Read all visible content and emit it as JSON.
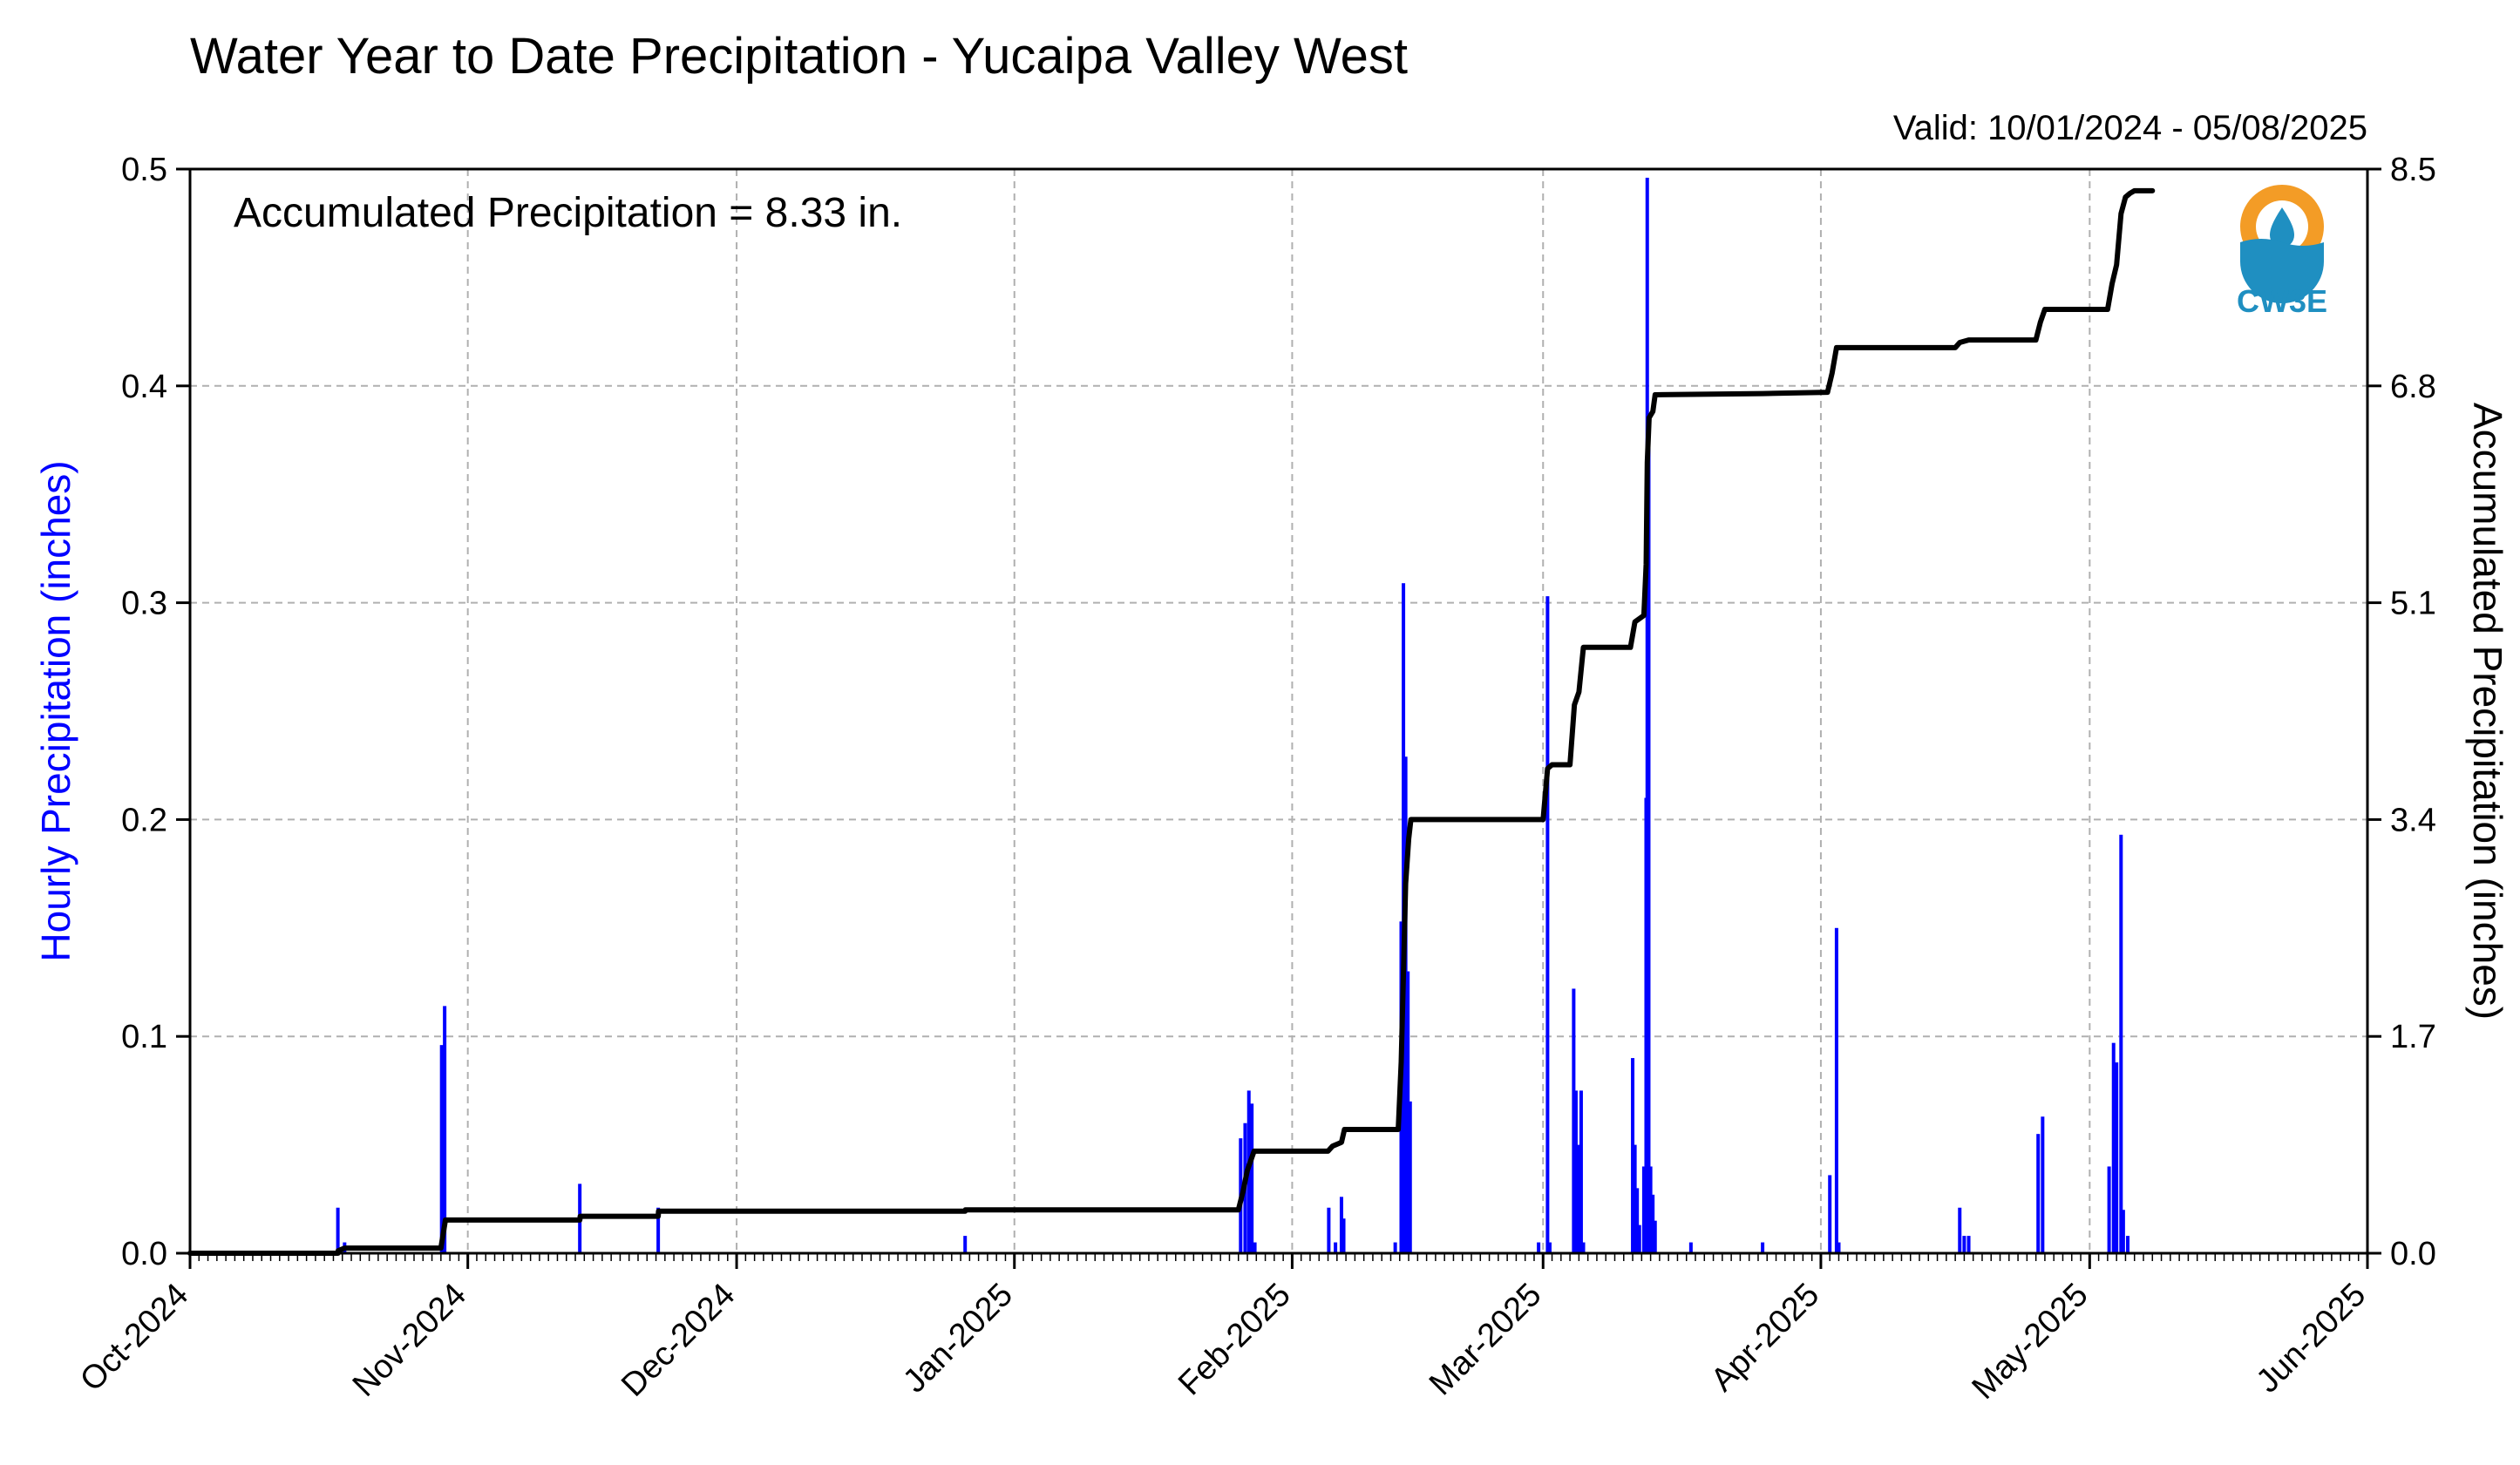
{
  "title": "Water Year to Date Precipitation - Yucaipa Valley West",
  "valid": "Valid: 10/01/2024 - 05/08/2025",
  "annotation": "Accumulated Precipitation = 8.33 in.",
  "logo_text": "CW3E",
  "colors": {
    "hourly": "#0000ff",
    "accum": "#000000",
    "grid": "#b0b0b0",
    "logo_orange": "#f39c26",
    "logo_blue": "#1f8fc1"
  },
  "chart_data": {
    "type": "bar",
    "x_axis": {
      "type": "date",
      "range": [
        "2024-10-01",
        "2025-06-01"
      ],
      "ticks": [
        {
          "date": "2024-10-01",
          "label": "Oct-2024"
        },
        {
          "date": "2024-11-01",
          "label": "Nov-2024"
        },
        {
          "date": "2024-12-01",
          "label": "Dec-2024"
        },
        {
          "date": "2025-01-01",
          "label": "Jan-2025"
        },
        {
          "date": "2025-02-01",
          "label": "Feb-2025"
        },
        {
          "date": "2025-03-01",
          "label": "Mar-2025"
        },
        {
          "date": "2025-04-01",
          "label": "Apr-2025"
        },
        {
          "date": "2025-05-01",
          "label": "May-2025"
        },
        {
          "date": "2025-06-01",
          "label": "Jun-2025"
        }
      ]
    },
    "y_left": {
      "label": "Hourly Precipitation (inches)",
      "range": [
        0,
        0.5
      ],
      "ticks": [
        0.0,
        0.1,
        0.2,
        0.3,
        0.4,
        0.5
      ],
      "tick_labels": [
        "0.0",
        "0.1",
        "0.2",
        "0.3",
        "0.4",
        "0.5"
      ]
    },
    "y_right": {
      "label": "Accumulated Precipitation (inches)",
      "range": [
        0,
        8.5
      ],
      "ticks": [
        0,
        1.7,
        3.4,
        5.1,
        6.8,
        8.5
      ],
      "tick_labels": [
        "0.0",
        "1.7",
        "3.4",
        "5.1",
        "6.8",
        "8.5"
      ]
    },
    "grid": true,
    "hourly_series": [
      {
        "x": "2024-10-17T12:00",
        "y": 0.021
      },
      {
        "x": "2024-10-18T06:00",
        "y": 0.005
      },
      {
        "x": "2024-10-29T02:00",
        "y": 0.096
      },
      {
        "x": "2024-10-29T10:00",
        "y": 0.114
      },
      {
        "x": "2024-11-13T12:00",
        "y": 0.032
      },
      {
        "x": "2024-11-22T06:00",
        "y": 0.021
      },
      {
        "x": "2024-12-26T12:00",
        "y": 0.008
      },
      {
        "x": "2025-01-26T06:00",
        "y": 0.053
      },
      {
        "x": "2025-01-26T18:00",
        "y": 0.06
      },
      {
        "x": "2025-01-27T04:00",
        "y": 0.075
      },
      {
        "x": "2025-01-27T12:00",
        "y": 0.069
      },
      {
        "x": "2025-01-27T20:00",
        "y": 0.005
      },
      {
        "x": "2025-02-05T02:00",
        "y": 0.021
      },
      {
        "x": "2025-02-05T20:00",
        "y": 0.005
      },
      {
        "x": "2025-02-06T12:00",
        "y": 0.026
      },
      {
        "x": "2025-02-06T18:00",
        "y": 0.016
      },
      {
        "x": "2025-02-12T12:00",
        "y": 0.005
      },
      {
        "x": "2025-02-13T04:00",
        "y": 0.153
      },
      {
        "x": "2025-02-13T10:00",
        "y": 0.309
      },
      {
        "x": "2025-02-13T16:00",
        "y": 0.229
      },
      {
        "x": "2025-02-13T22:00",
        "y": 0.13
      },
      {
        "x": "2025-02-14T04:00",
        "y": 0.07
      },
      {
        "x": "2025-02-28T12:00",
        "y": 0.005
      },
      {
        "x": "2025-03-01T12:00",
        "y": 0.303
      },
      {
        "x": "2025-03-01T18:00",
        "y": 0.005
      },
      {
        "x": "2025-03-04T10:00",
        "y": 0.122
      },
      {
        "x": "2025-03-04T16:00",
        "y": 0.075
      },
      {
        "x": "2025-03-05T00:00",
        "y": 0.05
      },
      {
        "x": "2025-03-05T06:00",
        "y": 0.075
      },
      {
        "x": "2025-03-05T12:00",
        "y": 0.005
      },
      {
        "x": "2025-03-11T00:00",
        "y": 0.09
      },
      {
        "x": "2025-03-11T06:00",
        "y": 0.05
      },
      {
        "x": "2025-03-11T12:00",
        "y": 0.03
      },
      {
        "x": "2025-03-11T18:00",
        "y": 0.013
      },
      {
        "x": "2025-03-12T06:00",
        "y": 0.04
      },
      {
        "x": "2025-03-12T12:00",
        "y": 0.21
      },
      {
        "x": "2025-03-12T15:00",
        "y": 0.496
      },
      {
        "x": "2025-03-12T19:00",
        "y": 0.38
      },
      {
        "x": "2025-03-13T00:00",
        "y": 0.04
      },
      {
        "x": "2025-03-13T06:00",
        "y": 0.027
      },
      {
        "x": "2025-03-13T12:00",
        "y": 0.015
      },
      {
        "x": "2025-03-17T12:00",
        "y": 0.005
      },
      {
        "x": "2025-03-25T12:00",
        "y": 0.005
      },
      {
        "x": "2025-04-02T00:00",
        "y": 0.036
      },
      {
        "x": "2025-04-02T18:00",
        "y": 0.15
      },
      {
        "x": "2025-04-03T00:00",
        "y": 0.005
      },
      {
        "x": "2025-04-16T12:00",
        "y": 0.021
      },
      {
        "x": "2025-04-17T00:00",
        "y": 0.008
      },
      {
        "x": "2025-04-17T12:00",
        "y": 0.008
      },
      {
        "x": "2025-04-25T06:00",
        "y": 0.055
      },
      {
        "x": "2025-04-25T18:00",
        "y": 0.063
      },
      {
        "x": "2025-05-03T04:00",
        "y": 0.04
      },
      {
        "x": "2025-05-03T16:00",
        "y": 0.097
      },
      {
        "x": "2025-05-04T00:00",
        "y": 0.088
      },
      {
        "x": "2025-05-04T12:00",
        "y": 0.193
      },
      {
        "x": "2025-05-04T18:00",
        "y": 0.02
      },
      {
        "x": "2025-05-05T06:00",
        "y": 0.008
      }
    ],
    "accum_series": [
      {
        "x": "2024-10-01T00:00",
        "y": 0.0
      },
      {
        "x": "2024-10-17T12:00",
        "y": 0.0
      },
      {
        "x": "2024-10-17T13:00",
        "y": 0.02
      },
      {
        "x": "2024-10-18T06:00",
        "y": 0.04
      },
      {
        "x": "2024-10-29T00:00",
        "y": 0.04
      },
      {
        "x": "2024-10-29T12:00",
        "y": 0.26
      },
      {
        "x": "2024-11-13T12:00",
        "y": 0.26
      },
      {
        "x": "2024-11-13T13:00",
        "y": 0.29
      },
      {
        "x": "2024-11-22T06:00",
        "y": 0.29
      },
      {
        "x": "2024-11-22T07:00",
        "y": 0.33
      },
      {
        "x": "2024-12-26T12:00",
        "y": 0.33
      },
      {
        "x": "2024-12-26T13:00",
        "y": 0.34
      },
      {
        "x": "2025-01-26T00:00",
        "y": 0.34
      },
      {
        "x": "2025-01-26T12:00",
        "y": 0.48
      },
      {
        "x": "2025-01-27T00:00",
        "y": 0.65
      },
      {
        "x": "2025-01-27T18:00",
        "y": 0.8
      },
      {
        "x": "2025-02-05T00:00",
        "y": 0.8
      },
      {
        "x": "2025-02-05T12:00",
        "y": 0.84
      },
      {
        "x": "2025-02-06T12:00",
        "y": 0.87
      },
      {
        "x": "2025-02-06T20:00",
        "y": 0.97
      },
      {
        "x": "2025-02-12T20:00",
        "y": 0.97
      },
      {
        "x": "2025-02-13T04:00",
        "y": 1.5
      },
      {
        "x": "2025-02-13T10:00",
        "y": 2.2
      },
      {
        "x": "2025-02-13T16:00",
        "y": 2.9
      },
      {
        "x": "2025-02-14T00:00",
        "y": 3.25
      },
      {
        "x": "2025-02-14T06:00",
        "y": 3.4
      },
      {
        "x": "2025-03-01T00:00",
        "y": 3.4
      },
      {
        "x": "2025-03-01T12:00",
        "y": 3.8
      },
      {
        "x": "2025-03-02T00:00",
        "y": 3.83
      },
      {
        "x": "2025-03-04T00:00",
        "y": 3.83
      },
      {
        "x": "2025-03-04T12:00",
        "y": 4.3
      },
      {
        "x": "2025-03-05T00:00",
        "y": 4.4
      },
      {
        "x": "2025-03-05T12:00",
        "y": 4.75
      },
      {
        "x": "2025-03-10T18:00",
        "y": 4.75
      },
      {
        "x": "2025-03-11T06:00",
        "y": 4.95
      },
      {
        "x": "2025-03-12T06:00",
        "y": 5.0
      },
      {
        "x": "2025-03-12T12:00",
        "y": 5.4
      },
      {
        "x": "2025-03-12T15:00",
        "y": 6.2
      },
      {
        "x": "2025-03-12T20:00",
        "y": 6.55
      },
      {
        "x": "2025-03-13T06:00",
        "y": 6.6
      },
      {
        "x": "2025-03-13T12:00",
        "y": 6.73
      },
      {
        "x": "2025-03-25T12:00",
        "y": 6.74
      },
      {
        "x": "2025-04-01T18:00",
        "y": 6.75
      },
      {
        "x": "2025-04-02T06:00",
        "y": 6.9
      },
      {
        "x": "2025-04-02T18:00",
        "y": 7.1
      },
      {
        "x": "2025-04-16T00:00",
        "y": 7.1
      },
      {
        "x": "2025-04-16T12:00",
        "y": 7.14
      },
      {
        "x": "2025-04-17T12:00",
        "y": 7.16
      },
      {
        "x": "2025-04-25T00:00",
        "y": 7.16
      },
      {
        "x": "2025-04-25T12:00",
        "y": 7.3
      },
      {
        "x": "2025-04-26T00:00",
        "y": 7.4
      },
      {
        "x": "2025-05-03T00:00",
        "y": 7.4
      },
      {
        "x": "2025-05-03T12:00",
        "y": 7.6
      },
      {
        "x": "2025-05-04T00:00",
        "y": 7.75
      },
      {
        "x": "2025-05-04T12:00",
        "y": 8.15
      },
      {
        "x": "2025-05-05T00:00",
        "y": 8.28
      },
      {
        "x": "2025-05-05T12:00",
        "y": 8.31
      },
      {
        "x": "2025-05-06T00:00",
        "y": 8.33
      },
      {
        "x": "2025-05-08T00:00",
        "y": 8.33
      }
    ]
  }
}
